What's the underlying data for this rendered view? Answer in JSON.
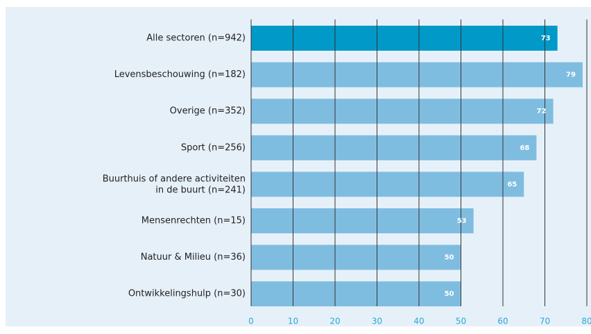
{
  "chart_data": {
    "type": "bar",
    "orientation": "horizontal",
    "categories": [
      "Alle sectoren (n=942)",
      "Levensbeschouwing (n=182)",
      "Overige (n=352)",
      "Sport (n=256)",
      "Buurthuis of andere activiteiten\nin de buurt (n=241)",
      "Mensenrechten (n=15)",
      "Natuur & Milieu (n=36)",
      "Ontwikkelingshulp (n=30)"
    ],
    "values": [
      73,
      79,
      72,
      68,
      65,
      53,
      50,
      50
    ],
    "colors": [
      "#0099c8",
      "#7fbde0",
      "#7fbde0",
      "#7fbde0",
      "#7fbde0",
      "#7fbde0",
      "#7fbde0",
      "#7fbde0"
    ],
    "xlim": [
      0,
      80
    ],
    "xticks": [
      0,
      10,
      20,
      30,
      40,
      50,
      60,
      70,
      80
    ],
    "grid": true
  }
}
